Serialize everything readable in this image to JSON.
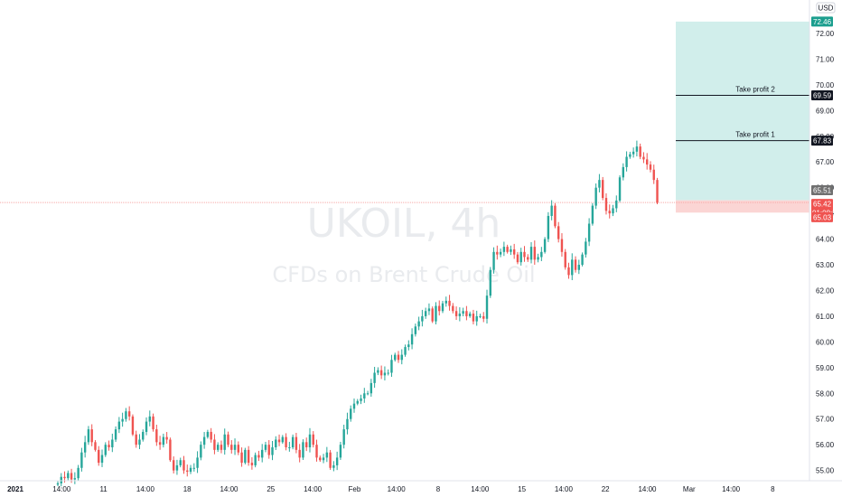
{
  "chart_data": {
    "type": "candlestick",
    "watermark": {
      "symbol": "UKOIL, 4h",
      "description": "CFDs on Brent Crude Oil"
    },
    "currency": "USD",
    "ylim": [
      54.6,
      73.3
    ],
    "y_ticks": [
      "73.00",
      "72.00",
      "71.00",
      "70.00",
      "69.00",
      "68.00",
      "67.00",
      "66.00",
      "65.00",
      "64.00",
      "63.00",
      "62.00",
      "61.00",
      "60.00",
      "59.00",
      "58.00",
      "57.00",
      "56.00",
      "55.00"
    ],
    "x_ticks": [
      {
        "label": "2021",
        "bold": true
      },
      {
        "label": "14:00"
      },
      {
        "label": "11"
      },
      {
        "label": "14:00"
      },
      {
        "label": "18"
      },
      {
        "label": "14:00"
      },
      {
        "label": "25"
      },
      {
        "label": "14:00"
      },
      {
        "label": "Feb"
      },
      {
        "label": "14:00"
      },
      {
        "label": "8"
      },
      {
        "label": "14:00"
      },
      {
        "label": "15"
      },
      {
        "label": "14:00"
      },
      {
        "label": "22"
      },
      {
        "label": "14:00"
      },
      {
        "label": "Mar"
      },
      {
        "label": "14:00"
      },
      {
        "label": "8"
      }
    ],
    "closes": [
      54.5,
      54.75,
      54.7,
      54.9,
      54.65,
      54.7,
      55.1,
      55.7,
      56.1,
      56.6,
      56.1,
      55.8,
      55.3,
      55.6,
      56.0,
      55.9,
      56.2,
      56.6,
      56.9,
      57.0,
      57.3,
      57.1,
      56.4,
      56.0,
      56.2,
      56.5,
      56.9,
      57.1,
      56.6,
      56.1,
      56.0,
      56.3,
      56.2,
      55.4,
      55.0,
      55.2,
      55.4,
      55.0,
      54.95,
      55.1,
      55.1,
      55.5,
      56.0,
      56.3,
      56.5,
      56.2,
      55.8,
      56.0,
      55.8,
      56.4,
      56.0,
      55.8,
      56.0,
      55.7,
      55.3,
      55.8,
      55.3,
      55.2,
      55.6,
      55.5,
      55.8,
      56.0,
      55.6,
      55.9,
      56.2,
      56.1,
      56.3,
      55.9,
      55.9,
      56.3,
      55.8,
      55.5,
      56.1,
      55.9,
      56.4,
      56.0,
      55.5,
      55.4,
      55.5,
      55.7,
      55.1,
      55.2,
      55.5,
      56.0,
      56.6,
      57.0,
      57.4,
      57.6,
      57.7,
      57.8,
      58.0,
      58.0,
      58.4,
      58.8,
      58.9,
      58.7,
      58.8,
      58.8,
      59.3,
      59.5,
      59.3,
      59.5,
      59.8,
      59.9,
      60.3,
      60.6,
      60.8,
      61.0,
      61.2,
      61.3,
      60.8,
      61.4,
      61.2,
      61.5,
      61.6,
      61.4,
      61.2,
      61.0,
      61.1,
      61.2,
      61.0,
      61.1,
      60.8,
      61.0,
      61.0,
      60.9,
      61.8,
      62.8,
      63.5,
      63.4,
      63.5,
      63.7,
      63.5,
      63.6,
      63.4,
      63.1,
      63.5,
      63.3,
      63.2,
      63.7,
      63.2,
      63.3,
      63.5,
      64.0,
      64.9,
      65.3,
      64.5,
      64.0,
      63.5,
      62.9,
      62.6,
      63.2,
      62.8,
      63.0,
      63.4,
      63.9,
      64.6,
      65.3,
      66.0,
      66.3,
      65.6,
      65.1,
      65.0,
      65.2,
      65.5,
      66.4,
      66.8,
      67.2,
      67.3,
      67.4,
      67.6,
      67.2,
      67.1,
      66.9,
      66.7,
      66.3,
      65.42
    ],
    "current_price": {
      "value": "65.42",
      "countdown": "01:08:54"
    },
    "price_line_upper": "65.51",
    "price_line_lower": "65.03",
    "position": {
      "entry": 65.51,
      "stop": 65.03,
      "target": 72.46,
      "target_label": "72.46",
      "take_profits": [
        {
          "name": "Take profit 2",
          "value": 69.59,
          "label": "69.59"
        },
        {
          "name": "Take profit 1",
          "value": 67.83,
          "label": "67.83"
        }
      ]
    },
    "colors": {
      "up": "#26a69a",
      "down": "#ef5350",
      "profit_zone": "#d1eeeb",
      "loss_zone": "#fbd5d4",
      "target_tag": "#1b9e8e",
      "tp_tag": "#131722",
      "price_tag": "#ef5350",
      "neutral_tag": "#707070"
    }
  }
}
